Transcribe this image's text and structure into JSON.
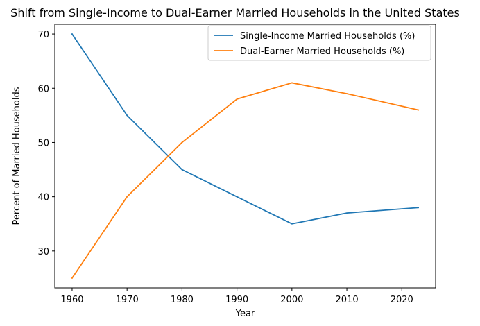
{
  "chart_data": {
    "type": "line",
    "title": "Shift from Single-Income to Dual-Earner Married Households in the United States",
    "xlabel": "Year",
    "ylabel": "Percent of Married Households",
    "x": [
      1960,
      1970,
      1980,
      1990,
      2000,
      2010,
      2023
    ],
    "series": [
      {
        "name": "Single-Income Married Households (%)",
        "values": [
          70,
          55,
          45,
          40,
          35,
          37,
          38
        ],
        "color": "#1f77b4"
      },
      {
        "name": "Dual-Earner Married Households (%)",
        "values": [
          25,
          40,
          50,
          58,
          61,
          59,
          56
        ],
        "color": "#ff7f0e"
      }
    ],
    "xlim": [
      1956.85,
      2026.15
    ],
    "ylim": [
      23.2,
      71.8
    ],
    "xticks": [
      1960,
      1970,
      1980,
      1990,
      2000,
      2010,
      2020
    ],
    "yticks": [
      30,
      40,
      50,
      60,
      70
    ],
    "grid": false,
    "legend_position": "top-right"
  }
}
